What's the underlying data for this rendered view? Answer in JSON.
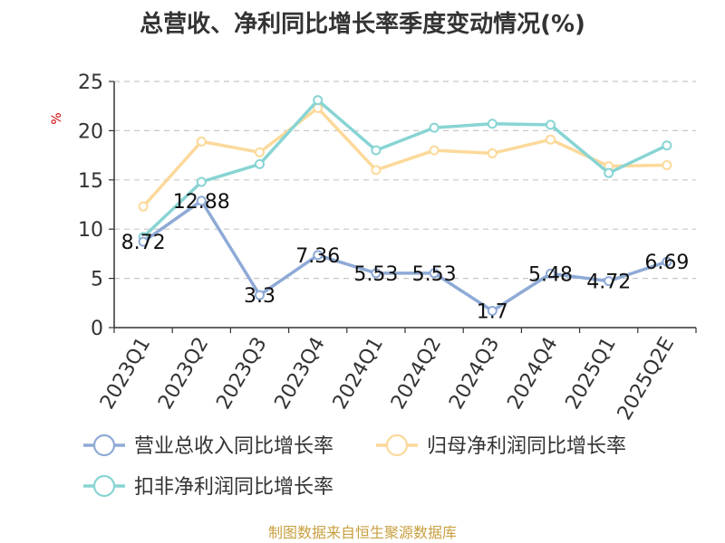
{
  "chart_data": {
    "type": "line",
    "title": "总营收、净利同比增长率季度变动情况(%)",
    "ylabel": "%",
    "ylim": [
      0,
      25
    ],
    "yticks": [
      0,
      5,
      10,
      15,
      20,
      25
    ],
    "grid": true,
    "legend_position": "bottom",
    "categories": [
      "2023Q1",
      "2023Q2",
      "2023Q3",
      "2023Q4",
      "2024Q1",
      "2024Q2",
      "2024Q3",
      "2024Q4",
      "2025Q1",
      "2025Q2E"
    ],
    "series": [
      {
        "name": "营业总收入同比增长率",
        "color": "#8eaad6",
        "values": [
          8.72,
          12.88,
          3.3,
          7.36,
          5.53,
          5.53,
          1.7,
          5.48,
          4.72,
          6.69
        ],
        "data_labels": [
          "8.72",
          "12.88",
          "3.3",
          "7.36",
          "5.53",
          "5.53",
          "1.7",
          "5.48",
          "4.72",
          "6.69"
        ]
      },
      {
        "name": "归母净利润同比增长率",
        "color": "#fcd99a",
        "values": [
          12.3,
          18.9,
          17.8,
          22.3,
          16.0,
          18.0,
          17.7,
          19.1,
          16.4,
          16.5
        ]
      },
      {
        "name": "扣非净利润同比增长率",
        "color": "#88d4d4",
        "values": [
          9.2,
          14.8,
          16.6,
          23.1,
          18.0,
          20.3,
          20.7,
          20.6,
          15.7,
          18.5
        ]
      }
    ]
  },
  "source": "制图数据来自恒生聚源数据库",
  "colors": {
    "unit": "#cc0000",
    "source": "#c8a040",
    "grid": "#c8c8c8",
    "axis": "#333333"
  }
}
